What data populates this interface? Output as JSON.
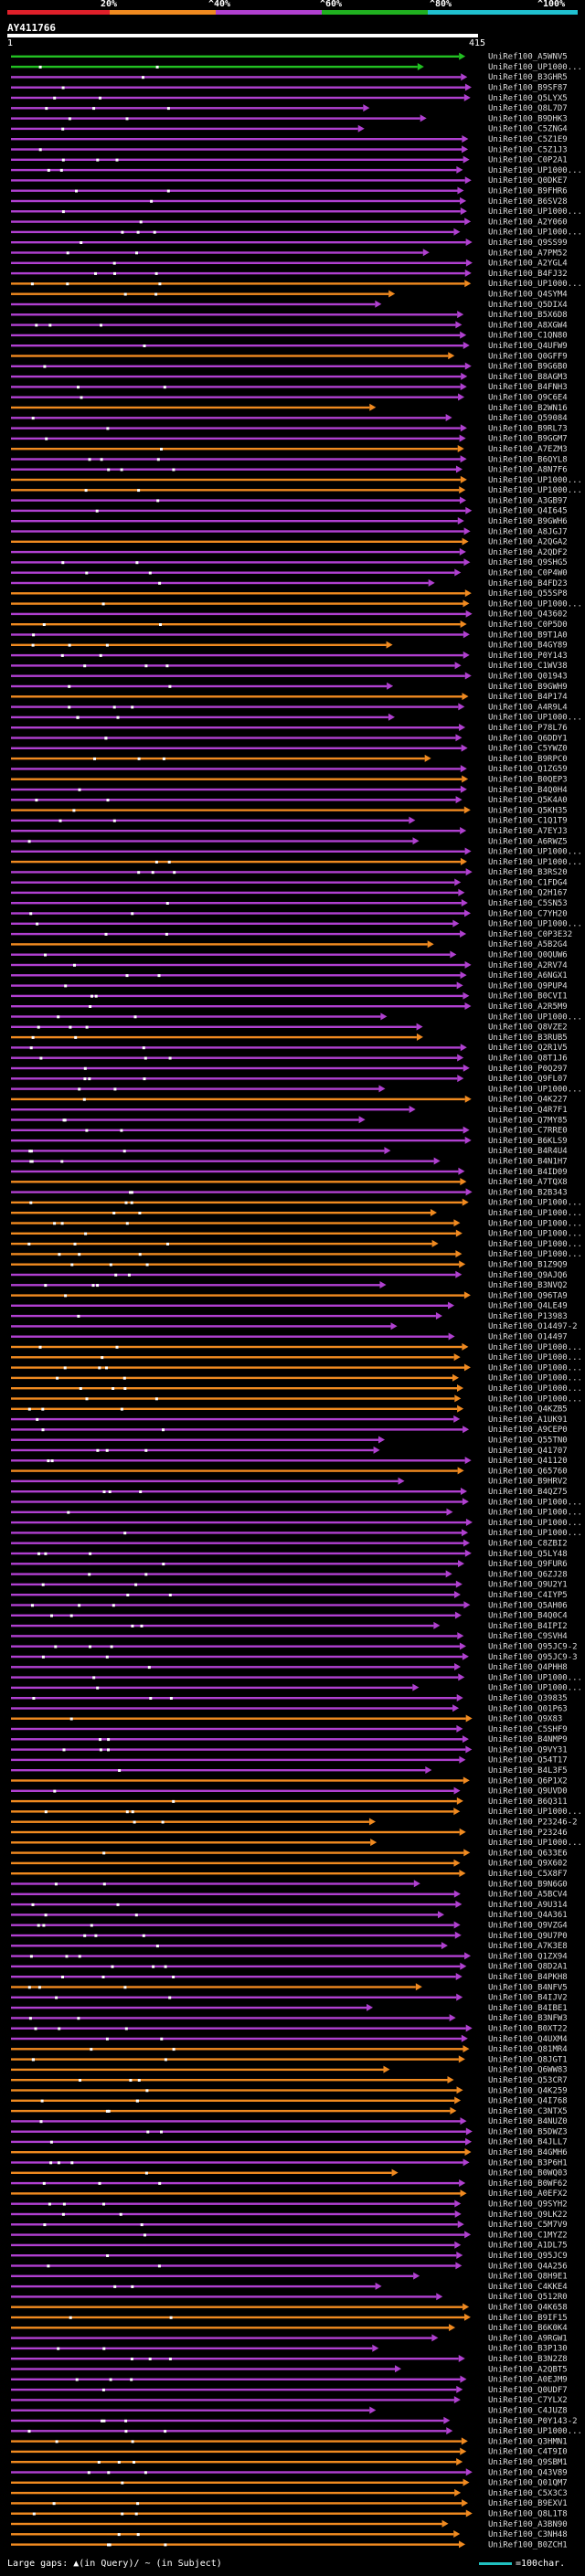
{
  "scale": {
    "labels": [
      "20%",
      "^40%",
      "^60%",
      "^80%",
      "^100%"
    ],
    "colors": [
      "#e0202a",
      "#f08a20",
      "#b040d0",
      "#20b020",
      "#20c0d0"
    ]
  },
  "query": {
    "title": "AY411766",
    "start_label": "1",
    "end_label": "415"
  },
  "track_colors": {
    "green": "#22c022",
    "purple": "#b040d0",
    "orange": "#f08a20",
    "gap": "#444"
  },
  "hits": [
    {
      "id": "UniRef100_A5WNV5",
      "c": "green"
    },
    {
      "id": "UniRef100_UP1000...",
      "c": "green"
    },
    {
      "id": "UniRef100_B3GHR5",
      "c": "purple"
    },
    {
      "id": "UniRef100_B9SF87",
      "c": "purple"
    },
    {
      "id": "UniRef100_Q5LYX5",
      "c": "purple"
    },
    {
      "id": "UniRef100_Q8L7D7",
      "c": "purple"
    },
    {
      "id": "UniRef100_B9DHK3",
      "c": "purple"
    },
    {
      "id": "UniRef100_C5ZNG4",
      "c": "purple"
    },
    {
      "id": "UniRef100_C5Z1E9",
      "c": "purple"
    },
    {
      "id": "UniRef100_C5Z1J3",
      "c": "purple"
    },
    {
      "id": "UniRef100_C0P2A1",
      "c": "purple"
    },
    {
      "id": "UniRef100_UP1000...",
      "c": "purple"
    },
    {
      "id": "UniRef100_Q0DKE7",
      "c": "purple"
    },
    {
      "id": "UniRef100_B9FHR6",
      "c": "purple"
    },
    {
      "id": "UniRef100_B6SV28",
      "c": "purple"
    },
    {
      "id": "UniRef100_UP1000...",
      "c": "purple"
    },
    {
      "id": "UniRef100_A2Y060",
      "c": "purple"
    },
    {
      "id": "UniRef100_UP1000...",
      "c": "purple"
    },
    {
      "id": "UniRef100_Q9SS99",
      "c": "purple"
    },
    {
      "id": "UniRef100_A7PM52",
      "c": "purple"
    },
    {
      "id": "UniRef100_A2YGL4",
      "c": "purple"
    },
    {
      "id": "UniRef100_B4FJ32",
      "c": "purple"
    },
    {
      "id": "UniRef100_UP1000...",
      "c": "orange"
    },
    {
      "id": "UniRef100_Q4SYM4",
      "c": "orange"
    },
    {
      "id": "UniRef100_Q5DIX4",
      "c": "purple"
    },
    {
      "id": "UniRef100_B5X6D8",
      "c": "purple"
    },
    {
      "id": "UniRef100_A8XGW4",
      "c": "purple"
    },
    {
      "id": "UniRef100_C1QN80",
      "c": "purple"
    },
    {
      "id": "UniRef100_Q4UFW9",
      "c": "purple"
    },
    {
      "id": "UniRef100_Q0GFF9",
      "c": "orange"
    },
    {
      "id": "UniRef100_B9G6B0",
      "c": "purple"
    },
    {
      "id": "UniRef100_B8AGM3",
      "c": "purple"
    },
    {
      "id": "UniRef100_B4FNH3",
      "c": "purple"
    },
    {
      "id": "UniRef100_Q9C6E4",
      "c": "purple"
    },
    {
      "id": "UniRef100_B2WN16",
      "c": "orange"
    },
    {
      "id": "UniRef100_Q59084",
      "c": "purple"
    },
    {
      "id": "UniRef100_B9RL73",
      "c": "purple"
    },
    {
      "id": "UniRef100_B9GGM7",
      "c": "purple"
    },
    {
      "id": "UniRef100_A7EZM3",
      "c": "orange"
    },
    {
      "id": "UniRef100_B6QYL8",
      "c": "purple"
    },
    {
      "id": "UniRef100_A8N7F6",
      "c": "purple"
    },
    {
      "id": "UniRef100_UP1000...",
      "c": "orange"
    },
    {
      "id": "UniRef100_UP1000...",
      "c": "orange"
    },
    {
      "id": "UniRef100_A3GB97",
      "c": "purple"
    },
    {
      "id": "UniRef100_Q4I645",
      "c": "purple"
    },
    {
      "id": "UniRef100_B9GWH6",
      "c": "purple"
    },
    {
      "id": "UniRef100_A8JGJ7",
      "c": "purple"
    },
    {
      "id": "UniRef100_A2QGA2",
      "c": "orange"
    },
    {
      "id": "UniRef100_A2QDF2",
      "c": "purple"
    },
    {
      "id": "UniRef100_Q9SHG5",
      "c": "purple"
    },
    {
      "id": "UniRef100_C0P4W0",
      "c": "purple"
    },
    {
      "id": "UniRef100_B4FD23",
      "c": "purple"
    },
    {
      "id": "UniRef100_Q55SP8",
      "c": "orange"
    },
    {
      "id": "UniRef100_UP1000...",
      "c": "orange"
    },
    {
      "id": "UniRef100_Q43602",
      "c": "purple"
    },
    {
      "id": "UniRef100_C0P5D0",
      "c": "orange"
    },
    {
      "id": "UniRef100_B9T1A0",
      "c": "purple"
    },
    {
      "id": "UniRef100_B4GY89",
      "c": "orange"
    },
    {
      "id": "UniRef100_P0Y143",
      "c": "purple"
    },
    {
      "id": "UniRef100_C1WV38",
      "c": "purple"
    },
    {
      "id": "UniRef100_Q01943",
      "c": "purple"
    },
    {
      "id": "UniRef100_B9GWH9",
      "c": "purple"
    },
    {
      "id": "UniRef100_B4P174",
      "c": "orange"
    },
    {
      "id": "UniRef100_A4R9L4",
      "c": "purple"
    },
    {
      "id": "UniRef100_UP1000...",
      "c": "purple"
    },
    {
      "id": "UniRef100_P78L76",
      "c": "purple"
    },
    {
      "id": "UniRef100_Q6DDY1",
      "c": "purple"
    },
    {
      "id": "UniRef100_C5YWZ0",
      "c": "purple"
    },
    {
      "id": "UniRef100_B9RPC0",
      "c": "orange"
    },
    {
      "id": "UniRef100_Q1ZG59",
      "c": "purple"
    },
    {
      "id": "UniRef100_B0QEP3",
      "c": "orange"
    },
    {
      "id": "UniRef100_B4Q0H4",
      "c": "purple"
    },
    {
      "id": "UniRef100_Q5K4A0",
      "c": "purple"
    },
    {
      "id": "UniRef100_Q5KH35",
      "c": "orange"
    },
    {
      "id": "UniRef100_C1Q1T9",
      "c": "purple"
    },
    {
      "id": "UniRef100_A7EYJ3",
      "c": "purple"
    },
    {
      "id": "UniRef100_A6RWZ5",
      "c": "purple"
    },
    {
      "id": "UniRef100_UP1000...",
      "c": "purple"
    },
    {
      "id": "UniRef100_UP1000...",
      "c": "orange"
    },
    {
      "id": "UniRef100_B3RS20",
      "c": "purple"
    },
    {
      "id": "UniRef100_C1FDG4",
      "c": "purple"
    },
    {
      "id": "UniRef100_Q2H167",
      "c": "purple"
    },
    {
      "id": "UniRef100_C5SN53",
      "c": "purple"
    },
    {
      "id": "UniRef100_C7YH20",
      "c": "purple"
    },
    {
      "id": "UniRef100_UP1000...",
      "c": "purple"
    },
    {
      "id": "UniRef100_C0P3E32",
      "c": "purple"
    },
    {
      "id": "UniRef100_A5B2G4",
      "c": "orange"
    },
    {
      "id": "UniRef100_Q0QUW6",
      "c": "purple"
    },
    {
      "id": "UniRef100_A2RV74",
      "c": "purple"
    },
    {
      "id": "UniRef100_A6NGX1",
      "c": "purple"
    },
    {
      "id": "UniRef100_Q9PUP4",
      "c": "purple"
    },
    {
      "id": "UniRef100_B0CVI1",
      "c": "purple"
    },
    {
      "id": "UniRef100_A2R5M9",
      "c": "purple"
    },
    {
      "id": "UniRef100_UP1000...",
      "c": "purple"
    },
    {
      "id": "UniRef100_Q8VZE2",
      "c": "purple"
    },
    {
      "id": "UniRef100_B3RUB5",
      "c": "orange"
    },
    {
      "id": "UniRef100_Q2R1V5",
      "c": "purple"
    },
    {
      "id": "UniRef100_Q8T1J6",
      "c": "purple"
    },
    {
      "id": "UniRef100_P0Q297",
      "c": "purple"
    },
    {
      "id": "UniRef100_Q9FL07",
      "c": "purple"
    },
    {
      "id": "UniRef100_UP1000...",
      "c": "purple"
    },
    {
      "id": "UniRef100_Q4K227",
      "c": "orange"
    },
    {
      "id": "UniRef100_Q4R7F1",
      "c": "purple"
    },
    {
      "id": "UniRef100_Q7MY85",
      "c": "purple"
    },
    {
      "id": "UniRef100_C7RRE0",
      "c": "purple"
    },
    {
      "id": "UniRef100_B6KLS9",
      "c": "purple"
    },
    {
      "id": "UniRef100_B4R4U4",
      "c": "purple"
    },
    {
      "id": "UniRef100_B4N1H7",
      "c": "purple"
    },
    {
      "id": "UniRef100_B4ID09",
      "c": "purple"
    },
    {
      "id": "UniRef100_A7TQX8",
      "c": "orange"
    },
    {
      "id": "UniRef100_B2B343",
      "c": "purple"
    },
    {
      "id": "UniRef100_UP1000...",
      "c": "orange"
    },
    {
      "id": "UniRef100_UP1000...",
      "c": "orange"
    },
    {
      "id": "UniRef100_UP1000...",
      "c": "orange"
    },
    {
      "id": "UniRef100_UP1000...",
      "c": "orange"
    },
    {
      "id": "UniRef100_UP1000...",
      "c": "orange"
    },
    {
      "id": "UniRef100_UP1000...",
      "c": "orange"
    },
    {
      "id": "UniRef100_B1Z9Q9",
      "c": "orange"
    },
    {
      "id": "UniRef100_Q9AJQ6",
      "c": "purple"
    },
    {
      "id": "UniRef100_B3NVQ2",
      "c": "purple"
    },
    {
      "id": "UniRef100_Q96TA9",
      "c": "orange"
    },
    {
      "id": "UniRef100_Q4LE49",
      "c": "purple"
    },
    {
      "id": "UniRef100_P13983",
      "c": "purple"
    },
    {
      "id": "UniRef100_O14497-2",
      "c": "purple"
    },
    {
      "id": "UniRef100_O14497",
      "c": "purple"
    },
    {
      "id": "UniRef100_UP1000...",
      "c": "orange"
    },
    {
      "id": "UniRef100_UP1000...",
      "c": "orange"
    },
    {
      "id": "UniRef100_UP1000...",
      "c": "orange"
    },
    {
      "id": "UniRef100_UP1000...",
      "c": "orange"
    },
    {
      "id": "UniRef100_UP1000...",
      "c": "orange"
    },
    {
      "id": "UniRef100_UP1000...",
      "c": "orange"
    },
    {
      "id": "UniRef100_Q4KZB5",
      "c": "orange"
    },
    {
      "id": "UniRef100_A1UK91",
      "c": "purple"
    },
    {
      "id": "UniRef100_A9CEP0",
      "c": "purple"
    },
    {
      "id": "UniRef100_Q55TN0",
      "c": "purple"
    },
    {
      "id": "UniRef100_Q41707",
      "c": "purple"
    },
    {
      "id": "UniRef100_Q41120",
      "c": "purple"
    },
    {
      "id": "UniRef100_Q65760",
      "c": "orange"
    },
    {
      "id": "UniRef100_B9HRV2",
      "c": "purple"
    },
    {
      "id": "UniRef100_B4QZ75",
      "c": "purple"
    },
    {
      "id": "UniRef100_UP1000...",
      "c": "purple"
    },
    {
      "id": "UniRef100_UP1000...",
      "c": "purple"
    },
    {
      "id": "UniRef100_UP1000...",
      "c": "purple"
    },
    {
      "id": "UniRef100_UP1000...",
      "c": "purple"
    },
    {
      "id": "UniRef100_C8ZBI2",
      "c": "purple"
    },
    {
      "id": "UniRef100_Q5LY48",
      "c": "purple"
    },
    {
      "id": "UniRef100_Q9FUR6",
      "c": "purple"
    },
    {
      "id": "UniRef100_Q6ZJ28",
      "c": "purple"
    },
    {
      "id": "UniRef100_Q9U2Y1",
      "c": "purple"
    },
    {
      "id": "UniRef100_C4IYP5",
      "c": "purple"
    },
    {
      "id": "UniRef100_Q5AH06",
      "c": "purple"
    },
    {
      "id": "UniRef100_B4Q0C4",
      "c": "purple"
    },
    {
      "id": "UniRef100_B4IPI2",
      "c": "purple"
    },
    {
      "id": "UniRef100_C9SVH4",
      "c": "purple"
    },
    {
      "id": "UniRef100_Q95JC9-2",
      "c": "purple"
    },
    {
      "id": "UniRef100_Q95JC9-3",
      "c": "purple"
    },
    {
      "id": "UniRef100_Q4PHH8",
      "c": "purple"
    },
    {
      "id": "UniRef100_UP1000...",
      "c": "purple"
    },
    {
      "id": "UniRef100_UP1000...",
      "c": "purple"
    },
    {
      "id": "UniRef100_Q39835",
      "c": "purple"
    },
    {
      "id": "UniRef100_Q01P63",
      "c": "purple"
    },
    {
      "id": "UniRef100_Q9X83",
      "c": "orange"
    },
    {
      "id": "UniRef100_C5SHF9",
      "c": "purple"
    },
    {
      "id": "UniRef100_B4NMP9",
      "c": "purple"
    },
    {
      "id": "UniRef100_Q9VY31",
      "c": "purple"
    },
    {
      "id": "UniRef100_Q54T17",
      "c": "purple"
    },
    {
      "id": "UniRef100_B4L3F5",
      "c": "purple"
    },
    {
      "id": "UniRef100_Q6P1X2",
      "c": "orange"
    },
    {
      "id": "UniRef100_Q9UVD0",
      "c": "purple"
    },
    {
      "id": "UniRef100_B6Q311",
      "c": "orange"
    },
    {
      "id": "UniRef100_UP1000...",
      "c": "orange"
    },
    {
      "id": "UniRef100_P23246-2",
      "c": "orange"
    },
    {
      "id": "UniRef100_P23246",
      "c": "orange"
    },
    {
      "id": "UniRef100_UP1000...",
      "c": "orange"
    },
    {
      "id": "UniRef100_Q633E6",
      "c": "orange"
    },
    {
      "id": "UniRef100_Q9X602",
      "c": "orange"
    },
    {
      "id": "UniRef100_C5X8F7",
      "c": "orange"
    },
    {
      "id": "UniRef100_B9N6G0",
      "c": "purple"
    },
    {
      "id": "UniRef100_A5BCV4",
      "c": "purple"
    },
    {
      "id": "UniRef100_A9U314",
      "c": "purple"
    },
    {
      "id": "UniRef100_Q4A361",
      "c": "purple"
    },
    {
      "id": "UniRef100_Q9VZG4",
      "c": "purple"
    },
    {
      "id": "UniRef100_Q9U7P0",
      "c": "purple"
    },
    {
      "id": "UniRef100_A7K3E8",
      "c": "purple"
    },
    {
      "id": "UniRef100_Q1ZX94",
      "c": "purple"
    },
    {
      "id": "UniRef100_Q8D2A1",
      "c": "purple"
    },
    {
      "id": "UniRef100_B4PKH8",
      "c": "purple"
    },
    {
      "id": "UniRef100_B4NFV5",
      "c": "orange"
    },
    {
      "id": "UniRef100_B4IJV2",
      "c": "purple"
    },
    {
      "id": "UniRef100_B4IBE1",
      "c": "purple"
    },
    {
      "id": "UniRef100_B3NFW3",
      "c": "purple"
    },
    {
      "id": "UniRef100_B0XT22",
      "c": "purple"
    },
    {
      "id": "UniRef100_Q4UXM4",
      "c": "purple"
    },
    {
      "id": "UniRef100_Q81MR4",
      "c": "orange"
    },
    {
      "id": "UniRef100_Q8JGT1",
      "c": "orange"
    },
    {
      "id": "UniRef100_Q6WW83",
      "c": "orange"
    },
    {
      "id": "UniRef100_Q53CR7",
      "c": "orange"
    },
    {
      "id": "UniRef100_Q4K259",
      "c": "orange"
    },
    {
      "id": "UniRef100_Q4I768",
      "c": "orange"
    },
    {
      "id": "UniRef100_C3NTX5",
      "c": "orange"
    },
    {
      "id": "UniRef100_B4NUZ0",
      "c": "purple"
    },
    {
      "id": "UniRef100_B5DWZ3",
      "c": "purple"
    },
    {
      "id": "UniRef100_B4JLL7",
      "c": "purple"
    },
    {
      "id": "UniRef100_B4GMH6",
      "c": "orange"
    },
    {
      "id": "UniRef100_B3P6H1",
      "c": "purple"
    },
    {
      "id": "UniRef100_B0WQ03",
      "c": "orange"
    },
    {
      "id": "UniRef100_B0WF62",
      "c": "purple"
    },
    {
      "id": "UniRef100_A0EFX2",
      "c": "orange"
    },
    {
      "id": "UniRef100_Q9SYH2",
      "c": "purple"
    },
    {
      "id": "UniRef100_Q9LK22",
      "c": "purple"
    },
    {
      "id": "UniRef100_C5M7V9",
      "c": "purple"
    },
    {
      "id": "UniRef100_C1MYZ2",
      "c": "purple"
    },
    {
      "id": "UniRef100_A1DL75",
      "c": "purple"
    },
    {
      "id": "UniRef100_Q95JC9",
      "c": "purple"
    },
    {
      "id": "UniRef100_Q4A256",
      "c": "purple"
    },
    {
      "id": "UniRef100_Q8H9E1",
      "c": "purple"
    },
    {
      "id": "UniRef100_C4KKE4",
      "c": "purple"
    },
    {
      "id": "UniRef100_Q512R0",
      "c": "purple"
    },
    {
      "id": "UniRef100_Q4K658",
      "c": "orange"
    },
    {
      "id": "UniRef100_B9IF15",
      "c": "orange"
    },
    {
      "id": "UniRef100_B6K0K4",
      "c": "orange"
    },
    {
      "id": "UniRef100_A9RGW1",
      "c": "purple"
    },
    {
      "id": "UniRef100_B3P130",
      "c": "purple"
    },
    {
      "id": "UniRef100_B3N2Z8",
      "c": "purple"
    },
    {
      "id": "UniRef100_A2QBT5",
      "c": "purple"
    },
    {
      "id": "UniRef100_A0EJM9",
      "c": "purple"
    },
    {
      "id": "UniRef100_Q0UDF7",
      "c": "purple"
    },
    {
      "id": "UniRef100_C7YLX2",
      "c": "purple"
    },
    {
      "id": "UniRef100_C4JUZ8",
      "c": "purple"
    },
    {
      "id": "UniRef100_P0Y143-2",
      "c": "purple"
    },
    {
      "id": "UniRef100_UP1000...",
      "c": "purple"
    },
    {
      "id": "UniRef100_Q3HMN1",
      "c": "orange"
    },
    {
      "id": "UniRef100_C4T9I0",
      "c": "orange"
    },
    {
      "id": "UniRef100_Q9SBM1",
      "c": "orange"
    },
    {
      "id": "UniRef100_Q43V89",
      "c": "purple"
    },
    {
      "id": "UniRef100_Q01QM7",
      "c": "orange"
    },
    {
      "id": "UniRef100_C5X3C3",
      "c": "orange"
    },
    {
      "id": "UniRef100_B9EXV1",
      "c": "orange"
    },
    {
      "id": "UniRef100_Q8L1T8",
      "c": "orange"
    },
    {
      "id": "UniRef100_A3BN90",
      "c": "orange"
    },
    {
      "id": "UniRef100_C3NH48",
      "c": "orange"
    },
    {
      "id": "UniRef100_B0ZCH1",
      "c": "orange"
    }
  ],
  "legend": {
    "text": "Large gaps: ▲(in Query)/ ~ (in Subject)",
    "scale_text": "=100char."
  }
}
